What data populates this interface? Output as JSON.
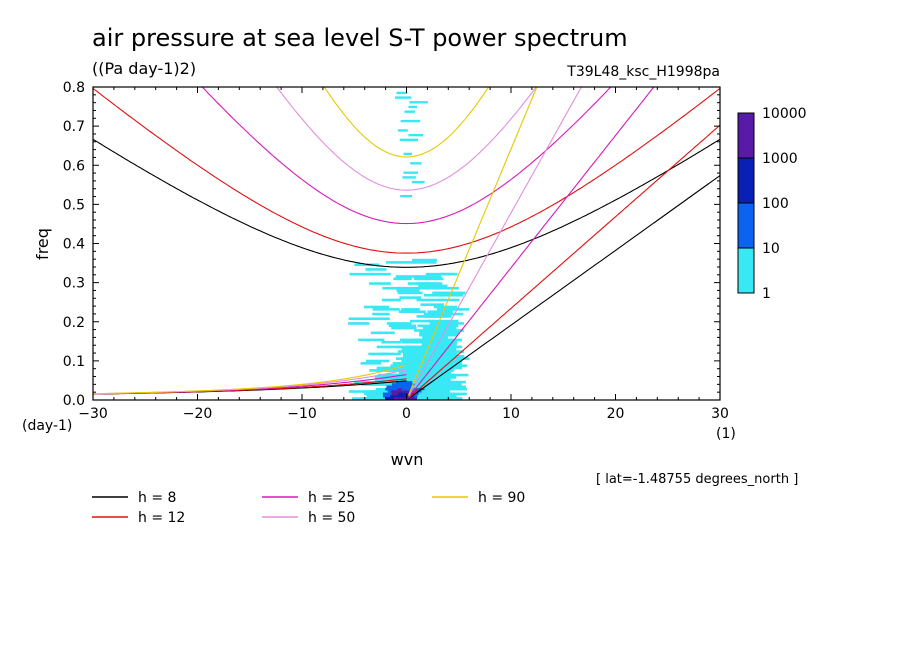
{
  "chart_data": {
    "type": "heatmap",
    "title": "air pressure at sea level S-T power spectrum",
    "subtitle": "((Pa day-1)2)",
    "run_label": "T39L48_ksc_H1998pa",
    "xlabel": "wvn",
    "xunit": "(1)",
    "ylabel": "freq",
    "yunit": "(day-1)",
    "xlim": [
      -30,
      30
    ],
    "ylim": [
      0,
      0.8
    ],
    "x_ticks": [
      -30,
      -20,
      -10,
      0,
      10,
      20,
      30
    ],
    "y_ticks": [
      0.0,
      0.1,
      0.2,
      0.3,
      0.4,
      0.5,
      0.6,
      0.7,
      0.8
    ],
    "note": "[ lat=-1.48755 degrees_north ]",
    "colorbar": {
      "levels": [
        "10000",
        "1000",
        "100",
        "10",
        "1"
      ],
      "colors": [
        "#5a1aa8",
        "#0a1fb5",
        "#0b63f0",
        "#38e8f5"
      ]
    },
    "series": [
      {
        "name": "h =  8",
        "equivalent_depth_m": 8,
        "color": "#000000"
      },
      {
        "name": "h = 12",
        "equivalent_depth_m": 12,
        "color": "#e01010"
      },
      {
        "name": "h = 25",
        "equivalent_depth_m": 25,
        "color": "#d81ab8"
      },
      {
        "name": "h = 50",
        "equivalent_depth_m": 50,
        "color": "#e28ee0"
      },
      {
        "name": "h = 90",
        "equivalent_depth_m": 90,
        "color": "#e8c800"
      }
    ],
    "spectrum_bins": [
      {
        "wvn": -3,
        "freq_max": 0.16,
        "level": 10
      },
      {
        "wvn": -2,
        "freq_max": 0.22,
        "level": 10
      },
      {
        "wvn": -1,
        "freq_max": 0.28,
        "level": 10
      },
      {
        "wvn": 0,
        "freq_max": 0.1,
        "level": 100
      },
      {
        "wvn": 1,
        "freq_max": 0.06,
        "level": 1000
      },
      {
        "wvn": 2,
        "freq_max": 0.04,
        "level": 1000
      },
      {
        "wvn": 3,
        "freq_max": 0.3,
        "level": 10
      },
      {
        "wvn": 5,
        "freq_max": 0.35,
        "level": 10
      }
    ]
  }
}
